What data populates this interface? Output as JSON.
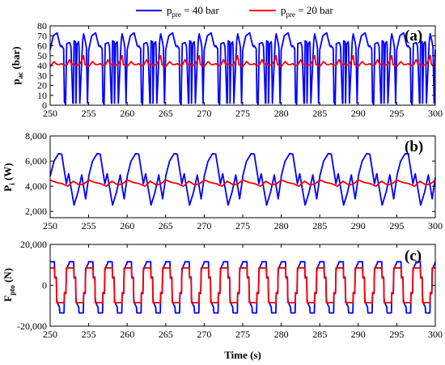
{
  "legend": {
    "series": [
      {
        "main": "p",
        "sub": "pre",
        "rest": " = 40 bar",
        "color": "#0000ff"
      },
      {
        "main": "p",
        "sub": "pre",
        "rest": " = 20 bar",
        "color": "#ff0000"
      }
    ]
  },
  "xlabel": "Time (s)",
  "chart_data": [
    {
      "type": "line",
      "panel": "(a)",
      "ylabel_main": "p",
      "ylabel_sub": "ac",
      "ylabel_rest": " (bar)",
      "xlim": [
        250,
        300
      ],
      "ylim": [
        0,
        80
      ],
      "xticks": [
        250,
        255,
        260,
        265,
        270,
        275,
        280,
        285,
        290,
        295,
        300
      ],
      "yticks": [
        0,
        10,
        20,
        30,
        40,
        50,
        60,
        70,
        80
      ],
      "ytick_labels": [
        "0",
        "10",
        "20",
        "30",
        "40",
        "50",
        "60",
        "70",
        "80"
      ],
      "period": 5,
      "series": [
        {
          "color": "#0000ff",
          "x": [
            0,
            0.4,
            0.9,
            1.3,
            1.42,
            1.5,
            1.75,
            1.85,
            2.0,
            2.15,
            2.45,
            2.55,
            2.7,
            2.95,
            3.0,
            3.1,
            3.3,
            3.35,
            3.5,
            3.7,
            3.75,
            3.85,
            4.2,
            4.25,
            4.35,
            4.6,
            4.7,
            4.85,
            5.0
          ],
          "values": [
            56,
            70,
            73,
            60,
            59,
            60,
            57,
            3,
            1,
            62,
            63,
            63,
            59,
            2,
            2,
            65,
            64,
            2,
            62,
            64,
            58,
            2,
            62,
            67,
            72,
            63,
            58,
            2,
            56
          ]
        },
        {
          "color": "#ff0000",
          "x": [
            0,
            0.5,
            0.9,
            1.2,
            1.5,
            1.8,
            2.2,
            2.5,
            2.8,
            3.1,
            3.4,
            3.8,
            4.1,
            4.35,
            4.5,
            4.75,
            5.0
          ],
          "values": [
            39,
            44,
            41,
            41,
            42,
            40,
            41,
            46,
            41,
            42,
            40,
            41,
            45,
            50,
            41,
            40,
            39
          ]
        }
      ]
    },
    {
      "type": "line",
      "panel": "(b)",
      "ylabel_main": "P",
      "ylabel_sub": "i",
      "ylabel_rest": " (W)",
      "xlim": [
        250,
        300
      ],
      "ylim": [
        1500,
        8000
      ],
      "xticks": [
        250,
        255,
        260,
        265,
        270,
        275,
        280,
        285,
        290,
        295,
        300
      ],
      "yticks": [
        2000,
        4000,
        6000,
        8000
      ],
      "ytick_labels": [
        "2,000",
        "4,000",
        "6,000",
        "8,000"
      ],
      "period": 5,
      "series": [
        {
          "color": "#0000ff",
          "x": [
            0,
            0.5,
            1.1,
            1.5,
            2.1,
            2.4,
            3.1,
            3.6,
            4.1,
            4.6,
            5.0
          ],
          "values": [
            4800,
            6000,
            6600,
            6550,
            4200,
            5000,
            2500,
            3500,
            4900,
            3000,
            4700
          ]
        },
        {
          "color": "#ff0000",
          "x": [
            0,
            0.8,
            1.6,
            2.3,
            3.0,
            3.8,
            4.4,
            5.0
          ],
          "values": [
            4500,
            4300,
            4200,
            4000,
            4400,
            4100,
            4200,
            4500
          ]
        }
      ]
    },
    {
      "type": "line",
      "panel": "(c)",
      "ylabel_main": "F",
      "ylabel_sub": "pto",
      "ylabel_rest": " (N)",
      "xlim": [
        250,
        300
      ],
      "ylim": [
        -20000,
        20000
      ],
      "xticks": [
        250,
        255,
        260,
        265,
        270,
        275,
        280,
        285,
        290,
        295,
        300
      ],
      "yticks": [
        -20000,
        0,
        20000
      ],
      "ytick_labels": [
        "-20,000",
        "0",
        "20,000"
      ],
      "period": 2.5,
      "series": [
        {
          "color": "#0000ff",
          "x": [
            0,
            0.05,
            0.55,
            0.6,
            0.8,
            0.85,
            0.9,
            0.95,
            1.05,
            1.1,
            1.2,
            1.25,
            1.3,
            1.8,
            1.85,
            2.05,
            2.1,
            2.15,
            2.2,
            2.3,
            2.35,
            2.45,
            2.5
          ],
          "values": [
            11500,
            11500,
            11500,
            4000,
            4000,
            -6000,
            -8000,
            -8500,
            -9500,
            -10000,
            -10500,
            -13500,
            -13500,
            -13500,
            -4000,
            -4000,
            6000,
            8000,
            8500,
            9500,
            10000,
            10500,
            11500
          ]
        },
        {
          "color": "#ff0000",
          "x": [
            0,
            0.05,
            0.55,
            0.6,
            0.8,
            0.85,
            1.25,
            1.3,
            1.8,
            1.85,
            2.05,
            2.1,
            2.45,
            2.5
          ],
          "values": [
            8500,
            8500,
            8500,
            3500,
            3500,
            -8500,
            -8500,
            -8500,
            -8500,
            -3500,
            -3500,
            8500,
            8500,
            8500
          ]
        }
      ]
    }
  ]
}
